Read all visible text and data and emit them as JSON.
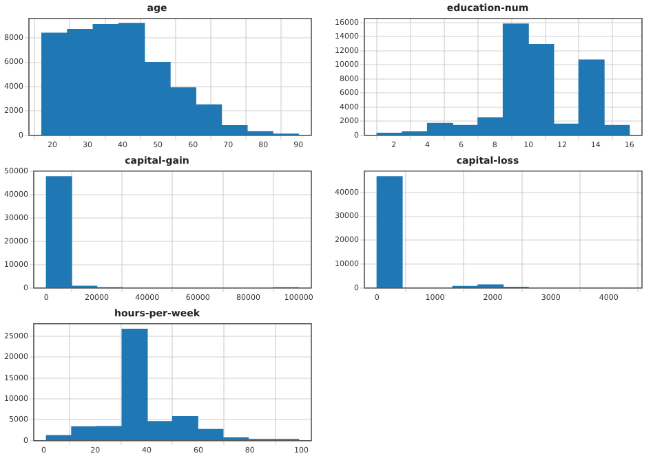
{
  "chart_data": [
    {
      "type": "histogram",
      "title": "age",
      "bins": [
        17,
        24.3,
        31.6,
        38.9,
        46.2,
        53.5,
        60.8,
        68.1,
        75.4,
        82.7,
        90
      ],
      "values": [
        8400,
        8700,
        9100,
        9200,
        6000,
        3900,
        2500,
        800,
        300,
        100
      ],
      "color": "#1f77b4",
      "xlim": [
        13.35,
        93.65
      ],
      "xticks": [
        20,
        30,
        40,
        50,
        60,
        70,
        80,
        90
      ],
      "ylim": [
        0,
        9600
      ],
      "yticks": [
        0,
        2000,
        4000,
        6000,
        8000
      ],
      "grid": true
    },
    {
      "type": "histogram",
      "title": "education-num",
      "bins": [
        1,
        2.5,
        4,
        5.5,
        7,
        8.5,
        10,
        11.5,
        13,
        14.5,
        16
      ],
      "values": [
        300,
        500,
        1700,
        1400,
        2500,
        15800,
        12900,
        1600,
        10700,
        1400
      ],
      "color": "#1f77b4",
      "xlim": [
        0.25,
        16.75
      ],
      "xticks": [
        2,
        4,
        6,
        8,
        10,
        12,
        14,
        16
      ],
      "ylim": [
        0,
        16600
      ],
      "yticks": [
        0,
        2000,
        4000,
        6000,
        8000,
        10000,
        12000,
        14000,
        16000
      ],
      "grid": true
    },
    {
      "type": "histogram",
      "title": "capital-gain",
      "bins": [
        0,
        10000,
        20000,
        30000,
        40000,
        50000,
        60000,
        70000,
        80000,
        90000,
        100000
      ],
      "values": [
        47700,
        800,
        200,
        0,
        0,
        0,
        0,
        0,
        0,
        200
      ],
      "color": "#1f77b4",
      "xlim": [
        -5000,
        105000
      ],
      "xticks": [
        0,
        20000,
        40000,
        60000,
        80000,
        100000
      ],
      "ylim": [
        0,
        50100
      ],
      "yticks": [
        0,
        10000,
        20000,
        30000,
        40000,
        50000
      ],
      "grid": true
    },
    {
      "type": "histogram",
      "title": "capital-loss",
      "bins": [
        0,
        435.6,
        871.2,
        1306.8,
        1742.4,
        2178,
        2613.6,
        3049.2,
        3484.8,
        3920.4,
        4356
      ],
      "values": [
        46600,
        0,
        0,
        700,
        1300,
        300,
        0,
        0,
        0,
        0
      ],
      "color": "#1f77b4",
      "xlim": [
        -217.8,
        4573.8
      ],
      "xticks": [
        0,
        1000,
        2000,
        3000,
        4000
      ],
      "ylim": [
        0,
        48900
      ],
      "yticks": [
        0,
        10000,
        20000,
        30000,
        40000
      ],
      "grid": true
    },
    {
      "type": "histogram",
      "title": "hours-per-week",
      "bins": [
        1,
        10.8,
        20.6,
        30.4,
        40.2,
        50,
        59.8,
        69.6,
        79.4,
        89.2,
        99
      ],
      "values": [
        1200,
        3300,
        3400,
        26700,
        4600,
        5800,
        2700,
        700,
        300,
        300
      ],
      "color": "#1f77b4",
      "xlim": [
        -3.9,
        103.9
      ],
      "xticks": [
        0,
        20,
        40,
        60,
        80,
        100
      ],
      "ylim": [
        0,
        28000
      ],
      "yticks": [
        0,
        5000,
        10000,
        15000,
        20000,
        25000
      ],
      "grid": true
    }
  ]
}
